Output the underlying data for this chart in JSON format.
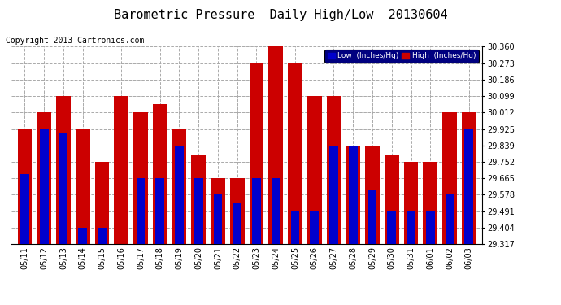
{
  "title": "Barometric Pressure  Daily High/Low  20130604",
  "copyright": "Copyright 2013 Cartronics.com",
  "dates": [
    "05/11",
    "05/12",
    "05/13",
    "05/14",
    "05/15",
    "05/16",
    "05/17",
    "05/18",
    "05/19",
    "05/20",
    "05/21",
    "05/22",
    "05/23",
    "05/24",
    "05/25",
    "05/26",
    "05/27",
    "05/28",
    "05/29",
    "05/30",
    "05/31",
    "06/01",
    "06/02",
    "06/03"
  ],
  "low_values": [
    29.685,
    29.925,
    29.9,
    29.404,
    29.404,
    29.317,
    29.665,
    29.665,
    29.839,
    29.665,
    29.578,
    29.53,
    29.665,
    29.665,
    29.491,
    29.491,
    29.839,
    29.839,
    29.6,
    29.491,
    29.491,
    29.491,
    29.578,
    29.925
  ],
  "high_values": [
    29.925,
    30.012,
    30.099,
    29.925,
    29.752,
    30.099,
    30.012,
    30.055,
    29.925,
    29.79,
    29.665,
    29.665,
    30.273,
    30.36,
    30.273,
    30.099,
    30.099,
    29.839,
    29.839,
    29.79,
    29.752,
    29.752,
    30.012,
    30.012
  ],
  "low_color": "#0000cc",
  "high_color": "#cc0000",
  "bg_color": "#ffffff",
  "grid_color": "#aaaaaa",
  "yticks": [
    29.317,
    29.404,
    29.491,
    29.578,
    29.665,
    29.752,
    29.839,
    29.925,
    30.012,
    30.099,
    30.186,
    30.273,
    30.36
  ],
  "ymin": 29.317,
  "ymax": 30.36,
  "legend_low_label": "Low  (Inches/Hg)",
  "legend_high_label": "High  (Inches/Hg)",
  "title_fontsize": 11,
  "copyright_fontsize": 7,
  "tick_fontsize": 7
}
